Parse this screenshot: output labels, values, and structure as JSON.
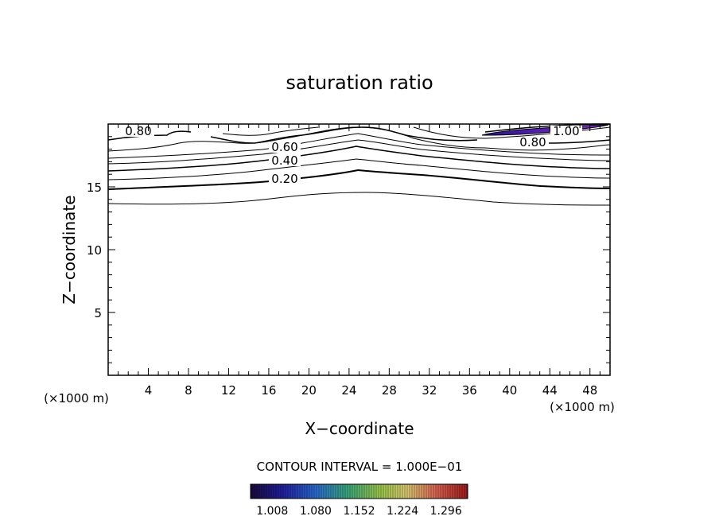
{
  "chart_data": {
    "type": "contour",
    "title": "saturation ratio",
    "xlabel": "X−coordinate",
    "ylabel": "Z−coordinate",
    "x_unit_left": "(×1000 m)",
    "x_unit_right": "(×1000 m)",
    "xlim": [
      0,
      50
    ],
    "ylim": [
      0,
      20
    ],
    "x_ticks": [
      "4",
      "8",
      "12",
      "16",
      "20",
      "24",
      "28",
      "32",
      "36",
      "40",
      "44",
      "48"
    ],
    "y_ticks": [
      "5",
      "10",
      "15"
    ],
    "contour_interval_text": "CONTOUR INTERVAL = 1.000E−01",
    "contour_levels": [
      0.1,
      0.2,
      0.3,
      0.4,
      0.5,
      0.6,
      0.7,
      0.8,
      0.9,
      1.0
    ],
    "contour_labels": [
      "0.80",
      "0.60",
      "0.40",
      "0.20",
      "0.80",
      "1.00"
    ],
    "colorbar_ticks": [
      "1.008",
      "1.080",
      "1.152",
      "1.224",
      "1.296"
    ],
    "colorbar_range": [
      0.972,
      1.332
    ],
    "colors": {
      "line": "#000000",
      "shade_low": "#3a1aa6",
      "shade_high": "#8a2be2"
    }
  }
}
